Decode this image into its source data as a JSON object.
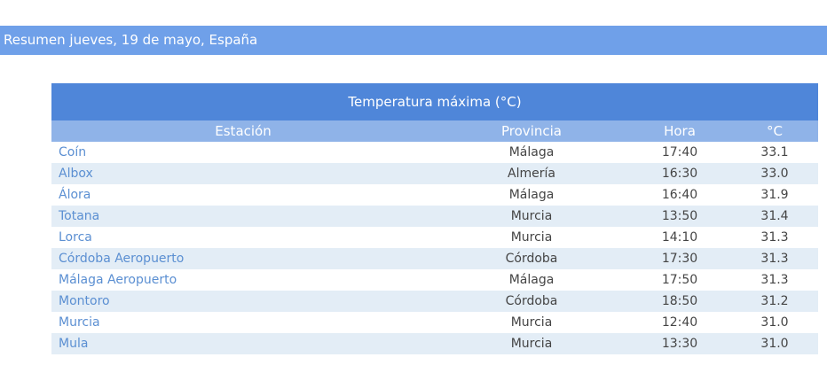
{
  "header": {
    "title": "Resumen jueves, 19 de mayo, España"
  },
  "table": {
    "title": "Temperatura máxima (°C)",
    "columns": [
      "Estación",
      "Provincia",
      "Hora",
      "°C"
    ],
    "rows": [
      [
        "Coín",
        "Málaga",
        "17:40",
        "33.1"
      ],
      [
        "Albox",
        "Almería",
        "16:30",
        "33.0"
      ],
      [
        "Álora",
        "Málaga",
        "16:40",
        "31.9"
      ],
      [
        "Totana",
        "Murcia",
        "13:50",
        "31.4"
      ],
      [
        "Lorca",
        "Murcia",
        "14:10",
        "31.3"
      ],
      [
        "Córdoba Aeropuerto",
        "Córdoba",
        "17:30",
        "31.3"
      ],
      [
        "Málaga Aeropuerto",
        "Málaga",
        "17:50",
        "31.3"
      ],
      [
        "Montoro",
        "Córdoba",
        "18:50",
        "31.2"
      ],
      [
        "Murcia",
        "Murcia",
        "12:40",
        "31.0"
      ],
      [
        "Mula",
        "Murcia",
        "13:30",
        "31.0"
      ]
    ]
  }
}
